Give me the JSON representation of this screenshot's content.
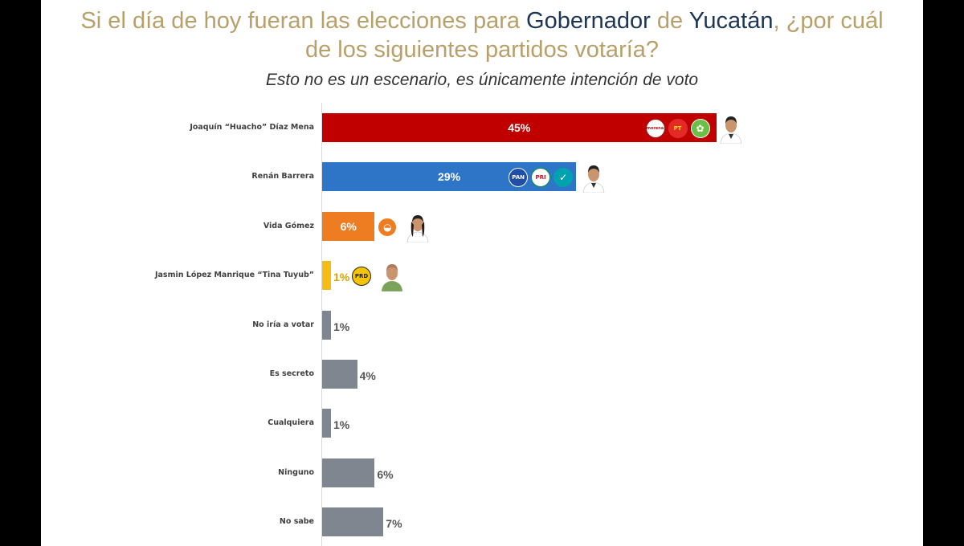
{
  "title": {
    "part1": "Si el día de hoy fueran las elecciones para ",
    "part2": "Gobernador",
    "part3": " de ",
    "part4": "Yucatán",
    "part5": ",  ¿por cuál",
    "line2": "de los siguientes partidos votaría?"
  },
  "subtitle": "Esto no es un escenario, es únicamente intención de voto",
  "colors": {
    "title": "#b8a06a",
    "title_highlight": "#1d3656",
    "grey_bar": "#808690"
  },
  "chart_data": {
    "type": "bar",
    "orientation": "horizontal",
    "unit": "%",
    "categories": [
      "Joaquín “Huacho” Díaz Mena",
      "Renán Barrera",
      "Vida Gómez",
      "Jasmin López Manrique “Tina Tuyub”",
      "No iría a votar",
      "Es secreto",
      "Cualquiera",
      "Ninguno",
      "No sabe"
    ],
    "values": [
      45,
      29,
      6,
      1,
      1,
      4,
      1,
      6,
      7
    ],
    "labels": [
      "45%",
      "29%",
      "6%",
      "1%",
      "1%",
      "4%",
      "1%",
      "6%",
      "7%"
    ],
    "colors": [
      "#c00000",
      "#2e75c8",
      "#ee7d21",
      "#f5bd14",
      "#808690",
      "#808690",
      "#808690",
      "#808690",
      "#808690"
    ],
    "xlim": [
      0,
      100
    ],
    "grid": false,
    "legend": "none",
    "party_logos": [
      [
        "morena",
        "PT",
        "verde"
      ],
      [
        "PAN",
        "PRI",
        "nueva-alianza"
      ],
      [
        "MC"
      ],
      [
        "PRD"
      ],
      [],
      [],
      [],
      [],
      []
    ]
  }
}
